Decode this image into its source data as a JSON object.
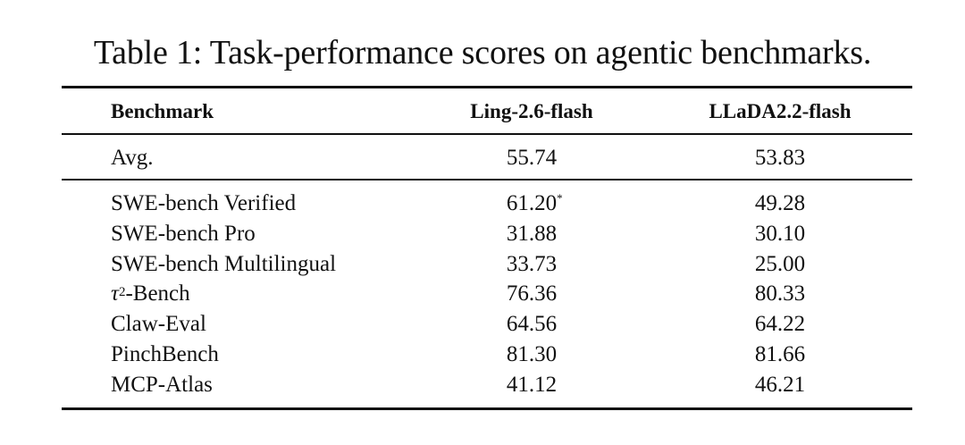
{
  "caption": "Table 1: Task-performance scores on agentic benchmarks.",
  "table": {
    "headers": {
      "benchmark": "Benchmark",
      "model_a": "Ling-2.6-flash",
      "model_b": "LLaDA2.2-flash"
    },
    "avg_row": {
      "label": "Avg.",
      "a": "55.74",
      "b": "53.83"
    },
    "rows": [
      {
        "label": "SWE-bench Verified",
        "a": "61.20",
        "a_mark": "*",
        "b": "49.28"
      },
      {
        "label": "SWE-bench Pro",
        "a": "31.88",
        "b": "30.10"
      },
      {
        "label": "SWE-bench Multilingual",
        "a": "33.73",
        "b": "25.00"
      },
      {
        "label_symbol": "τ",
        "label_sup": "2",
        "label_rest": "-Bench",
        "a": "76.36",
        "b": "80.33"
      },
      {
        "label": "Claw-Eval",
        "a": "64.56",
        "b": "64.22"
      },
      {
        "label": "PinchBench",
        "a": "81.30",
        "b": "81.66"
      },
      {
        "label": "MCP-Atlas",
        "a": "41.12",
        "b": "46.21"
      }
    ]
  }
}
